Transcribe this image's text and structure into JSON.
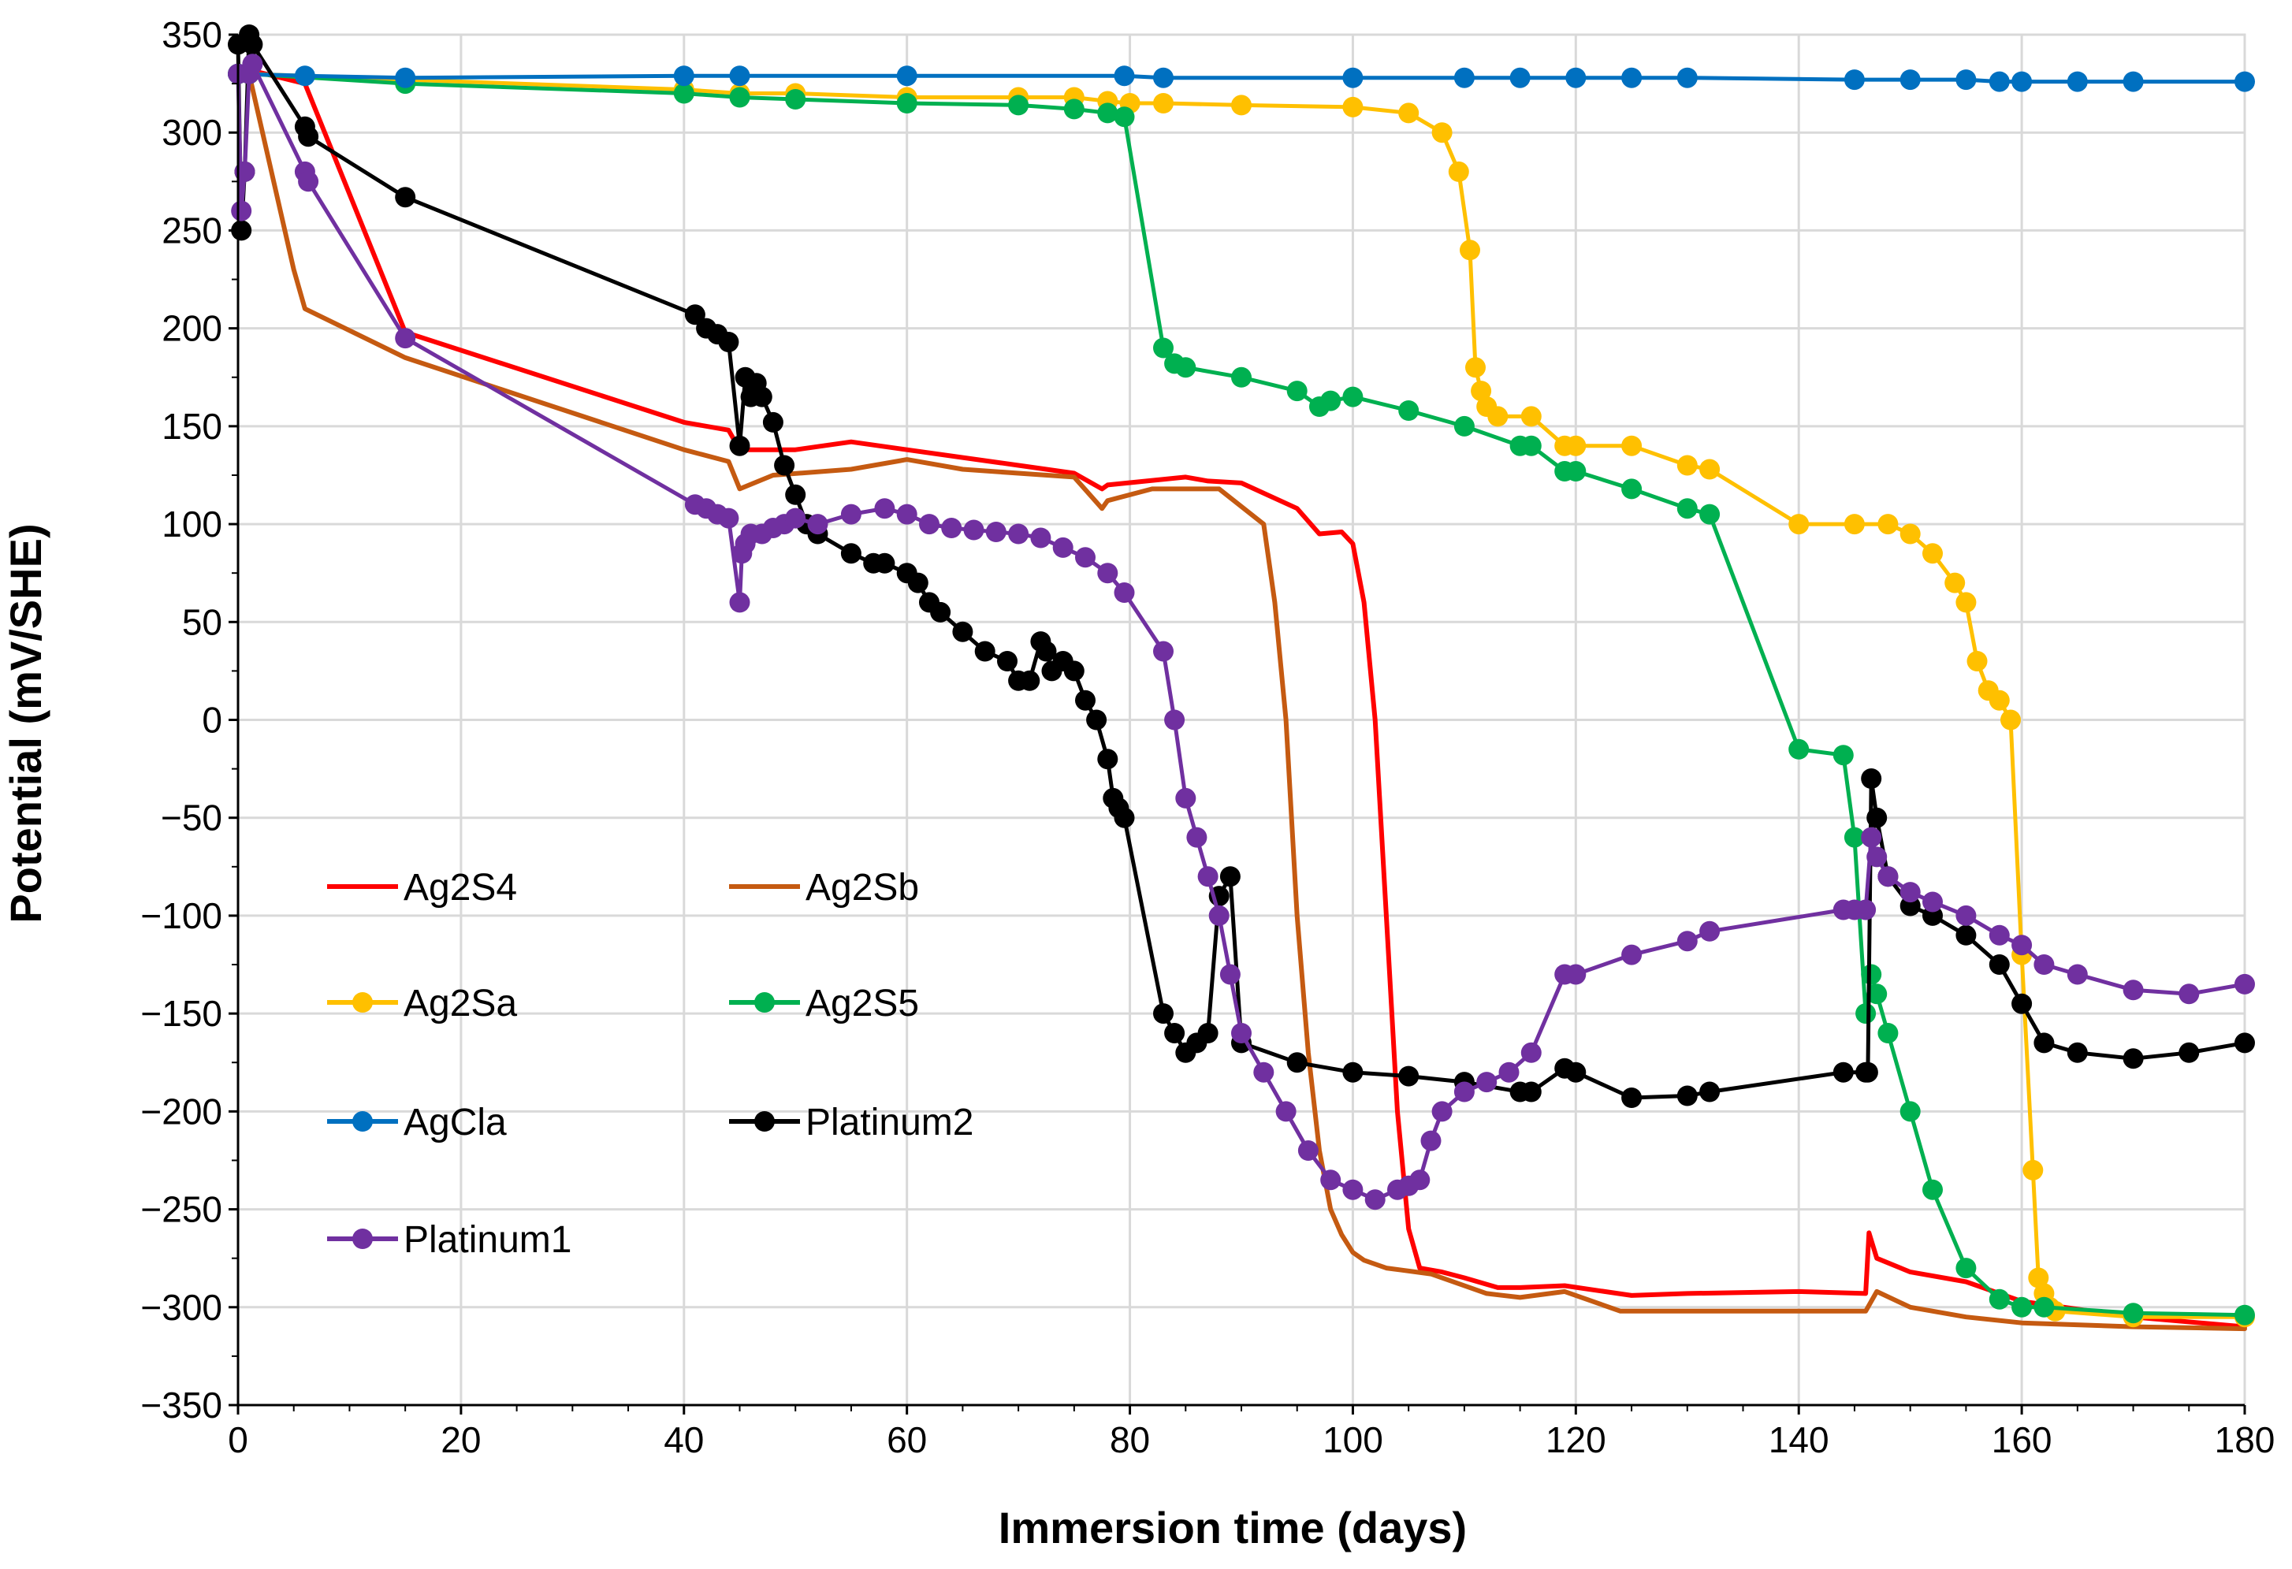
{
  "chart_data": {
    "type": "line",
    "title": "",
    "xlabel": "Immersion time (days)",
    "ylabel": "Potential (mV/SHE)",
    "xlim": [
      0,
      180
    ],
    "ylim": [
      -350,
      350
    ],
    "xticks": [
      0,
      20,
      40,
      60,
      80,
      100,
      120,
      140,
      160,
      180
    ],
    "yticks": [
      -350,
      -300,
      -250,
      -200,
      -150,
      -100,
      -50,
      0,
      50,
      100,
      150,
      200,
      250,
      300,
      350
    ],
    "xtick_labels": [
      "0",
      "20",
      "40",
      "60",
      "80",
      "100",
      "120",
      "140",
      "160",
      "180"
    ],
    "ytick_labels": [
      "−350",
      "−300",
      "−250",
      "−200",
      "−150",
      "−100",
      "−50",
      "0",
      "50",
      "100",
      "150",
      "200",
      "250",
      "300",
      "350"
    ],
    "grid": true,
    "legend_position": "left-middle",
    "series": [
      {
        "name": "Ag2S4",
        "color": "#FF0000",
        "marker": "none",
        "x": [
          0,
          1,
          6,
          15,
          40,
          44,
          45,
          50,
          55,
          60,
          65,
          70,
          75,
          77.5,
          78,
          85,
          87,
          90,
          95,
          97,
          99,
          100,
          101,
          102,
          103,
          104,
          105,
          106,
          108,
          110,
          113,
          115,
          119,
          125,
          130,
          140,
          146,
          146.3,
          147,
          150,
          155,
          160,
          170,
          180
        ],
        "y": [
          330,
          332,
          325,
          198,
          152,
          148,
          138,
          138,
          142,
          138,
          134,
          130,
          126,
          118,
          120,
          124,
          122,
          121,
          108,
          95,
          96,
          90,
          60,
          0,
          -100,
          -200,
          -260,
          -280,
          -282,
          -285,
          -290,
          -290,
          -289,
          -294,
          -293,
          -292,
          -293,
          -262,
          -275,
          -282,
          -287,
          -297,
          -305,
          -310
        ]
      },
      {
        "name": "Ag2Sb",
        "color": "#C55A11",
        "marker": "none",
        "x": [
          0,
          1,
          5,
          6,
          15,
          40,
          44,
          45,
          48,
          55,
          60,
          65,
          70,
          75,
          77.5,
          78,
          82,
          88,
          92,
          93,
          94,
          95,
          96,
          97,
          98,
          99,
          100,
          101,
          103,
          107,
          112,
          115,
          119,
          124,
          130,
          140,
          146,
          147,
          150,
          155,
          160,
          170,
          180
        ],
        "y": [
          330,
          330,
          230,
          210,
          185,
          138,
          132,
          118,
          125,
          128,
          133,
          128,
          126,
          124,
          108,
          112,
          118,
          118,
          100,
          60,
          0,
          -100,
          -170,
          -220,
          -250,
          -263,
          -272,
          -276,
          -280,
          -283,
          -293,
          -295,
          -292,
          -302,
          -302,
          -302,
          -302,
          -292,
          -300,
          -305,
          -308,
          -310,
          -311
        ]
      },
      {
        "name": "Ag2Sa",
        "color": "#FFC000",
        "marker": "dot",
        "x": [
          0,
          1,
          15,
          40,
          45,
          50,
          60,
          70,
          75,
          78,
          80,
          83,
          90,
          100,
          105,
          108,
          109.5,
          110.5,
          111,
          111.5,
          112,
          113,
          116,
          119,
          120,
          125,
          130,
          132,
          140,
          145,
          148,
          150,
          152,
          154,
          155,
          156,
          157,
          158,
          159,
          160,
          161,
          161.5,
          162,
          162.5,
          163,
          170,
          180
        ],
        "y": [
          330,
          330,
          327,
          322,
          320,
          320,
          318,
          318,
          318,
          316,
          315,
          315,
          314,
          313,
          310,
          300,
          280,
          240,
          180,
          168,
          160,
          155,
          155,
          140,
          140,
          140,
          130,
          128,
          100,
          100,
          100,
          95,
          85,
          70,
          60,
          30,
          15,
          10,
          0,
          -120,
          -230,
          -285,
          -293,
          -300,
          -302,
          -305,
          -305
        ]
      },
      {
        "name": "Ag2S5",
        "color": "#00B050",
        "marker": "dot",
        "x": [
          0,
          1,
          15,
          40,
          45,
          50,
          60,
          70,
          75,
          78,
          79.5,
          83,
          84,
          85,
          90,
          95,
          97,
          98,
          100,
          105,
          110,
          115,
          116,
          119,
          120,
          125,
          130,
          132,
          140,
          144,
          145,
          146,
          146.5,
          147,
          148,
          150,
          152,
          155,
          158,
          160,
          162,
          170,
          180
        ],
        "y": [
          330,
          330,
          325,
          320,
          318,
          317,
          315,
          314,
          312,
          310,
          308,
          190,
          182,
          180,
          175,
          168,
          160,
          163,
          165,
          158,
          150,
          140,
          140,
          127,
          127,
          118,
          108,
          105,
          -15,
          -18,
          -60,
          -150,
          -130,
          -140,
          -160,
          -200,
          -240,
          -280,
          -296,
          -300,
          -300,
          -303,
          -304
        ]
      },
      {
        "name": "AgCla",
        "color": "#0070C0",
        "marker": "dot",
        "x": [
          0,
          6,
          15,
          40,
          45,
          60,
          79.5,
          83,
          100,
          110,
          115,
          120,
          125,
          130,
          145,
          150,
          155,
          158,
          160,
          165,
          170,
          180
        ],
        "y": [
          330,
          329,
          328,
          329,
          329,
          329,
          329,
          328,
          328,
          328,
          328,
          328,
          328,
          328,
          327,
          327,
          327,
          326,
          326,
          326,
          326,
          326
        ]
      },
      {
        "name": "Platinum2",
        "color": "#000000",
        "marker": "dot",
        "x": [
          0,
          0.3,
          0.6,
          1,
          1.3,
          6,
          6.3,
          15,
          41,
          42,
          43,
          44,
          45,
          45.5,
          46,
          46.5,
          47,
          48,
          49,
          50,
          51,
          52,
          55,
          57,
          58,
          60,
          61,
          62,
          63,
          65,
          67,
          69,
          70,
          71,
          72,
          72.5,
          73,
          74,
          75,
          76,
          77,
          78,
          78.5,
          79,
          79.5,
          83,
          84,
          85,
          86,
          87,
          88,
          89,
          90,
          95,
          100,
          105,
          110,
          115,
          116,
          119,
          120,
          125,
          130,
          132,
          144,
          146,
          146.2,
          146.5,
          147,
          148,
          150,
          152,
          155,
          158,
          160,
          162,
          165,
          170,
          175,
          180
        ],
        "y": [
          345,
          250,
          280,
          350,
          345,
          303,
          298,
          267,
          207,
          200,
          197,
          193,
          140,
          175,
          165,
          172,
          165,
          152,
          130,
          115,
          100,
          95,
          85,
          80,
          80,
          75,
          70,
          60,
          55,
          45,
          35,
          30,
          20,
          20,
          40,
          35,
          25,
          30,
          25,
          10,
          0,
          -20,
          -40,
          -45,
          -50,
          -150,
          -160,
          -170,
          -165,
          -160,
          -90,
          -80,
          -165,
          -175,
          -180,
          -182,
          -185,
          -190,
          -190,
          -178,
          -180,
          -193,
          -192,
          -190,
          -180,
          -180,
          -180,
          -30,
          -50,
          -80,
          -95,
          -100,
          -110,
          -125,
          -145,
          -165,
          -170,
          -173,
          -170,
          -165
        ]
      },
      {
        "name": "Platinum1",
        "color": "#7030A0",
        "marker": "dot",
        "x": [
          0,
          0.3,
          0.6,
          1,
          1.3,
          6,
          6.3,
          15,
          41,
          42,
          43,
          44,
          45,
          45.2,
          45.5,
          46,
          47,
          48,
          49,
          50,
          52,
          55,
          58,
          60,
          62,
          64,
          66,
          68,
          70,
          72,
          74,
          76,
          78,
          79.5,
          83,
          84,
          85,
          86,
          87,
          88,
          89,
          90,
          92,
          94,
          96,
          98,
          100,
          102,
          104,
          105,
          106,
          107,
          108,
          110,
          112,
          114,
          116,
          119,
          120,
          125,
          130,
          132,
          144,
          145,
          146,
          146.5,
          147,
          148,
          150,
          152,
          155,
          158,
          160,
          162,
          165,
          170,
          175,
          180
        ],
        "y": [
          330,
          260,
          280,
          330,
          335,
          280,
          275,
          195,
          110,
          108,
          105,
          103,
          60,
          85,
          90,
          95,
          95,
          98,
          100,
          103,
          100,
          105,
          108,
          105,
          100,
          98,
          97,
          96,
          95,
          93,
          88,
          83,
          75,
          65,
          35,
          0,
          -40,
          -60,
          -80,
          -100,
          -130,
          -160,
          -180,
          -200,
          -220,
          -235,
          -240,
          -245,
          -240,
          -238,
          -235,
          -215,
          -200,
          -190,
          -185,
          -180,
          -170,
          -130,
          -130,
          -120,
          -113,
          -108,
          -97,
          -97,
          -97,
          -60,
          -70,
          -80,
          -88,
          -93,
          -100,
          -110,
          -115,
          -125,
          -130,
          -138,
          -140,
          -135
        ]
      }
    ]
  }
}
